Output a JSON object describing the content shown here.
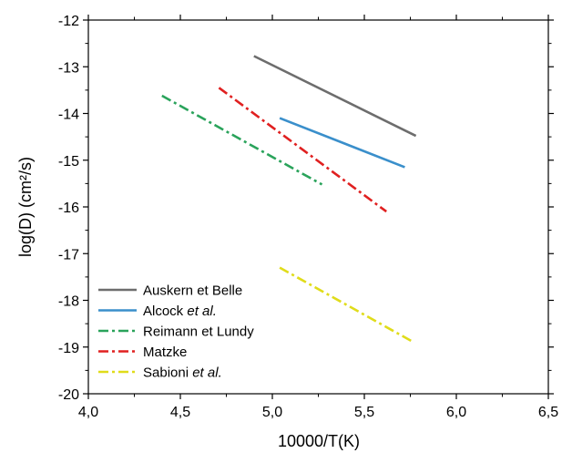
{
  "chart_data": {
    "type": "line",
    "xlabel": "10000/T(K)",
    "ylabel": "log(D) (cm²/s)",
    "xlim": [
      4.0,
      6.5
    ],
    "ylim": [
      -20,
      -12
    ],
    "xticks": [
      "4,0",
      "4,5",
      "5,0",
      "5,5",
      "6,0",
      "6,5"
    ],
    "yticks": [
      "-12",
      "-13",
      "-14",
      "-15",
      "-16",
      "-17",
      "-18",
      "-19",
      "-20"
    ],
    "grid": false,
    "legend_position": "bottom-left",
    "series": [
      {
        "name": "Auskern et Belle",
        "name_parts": [
          {
            "text": "Auskern et Belle",
            "italic": false
          }
        ],
        "color": "#6d6d6d",
        "dash": "solid",
        "x": [
          4.9,
          5.78
        ],
        "y": [
          -12.77,
          -14.48
        ]
      },
      {
        "name": "Alcock et al.",
        "name_parts": [
          {
            "text": "Alcock ",
            "italic": false
          },
          {
            "text": "et al.",
            "italic": true
          }
        ],
        "color": "#3a8fcb",
        "dash": "solid",
        "x": [
          5.04,
          5.72
        ],
        "y": [
          -14.1,
          -15.15
        ]
      },
      {
        "name": "Reimann et Lundy",
        "name_parts": [
          {
            "text": "Reimann et Lundy",
            "italic": false
          }
        ],
        "color": "#2aa35b",
        "dash": "dashdot",
        "x": [
          4.4,
          5.27
        ],
        "y": [
          -13.62,
          -15.52
        ]
      },
      {
        "name": "Matzke",
        "name_parts": [
          {
            "text": "Matzke",
            "italic": false
          }
        ],
        "color": "#e02020",
        "dash": "dashdot",
        "x": [
          4.71,
          5.62
        ],
        "y": [
          -13.45,
          -16.1
        ]
      },
      {
        "name": "Sabioni et al.",
        "name_parts": [
          {
            "text": "Sabioni ",
            "italic": false
          },
          {
            "text": "et al.",
            "italic": true
          }
        ],
        "color": "#e0dc1a",
        "dash": "dashdot",
        "x": [
          5.04,
          5.76
        ],
        "y": [
          -17.3,
          -18.88
        ]
      }
    ]
  }
}
